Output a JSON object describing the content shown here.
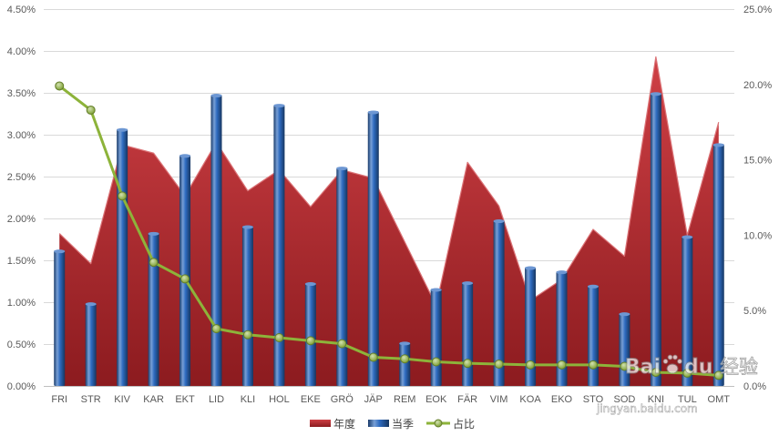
{
  "chart_data": {
    "type": "bar",
    "categories": [
      "FRI",
      "STR",
      "KIV",
      "KAR",
      "EKT",
      "LID",
      "KLI",
      "HOL",
      "EKE",
      "GRÖ",
      "JÄP",
      "REM",
      "EOK",
      "FÄR",
      "VIM",
      "KOA",
      "EKO",
      "STO",
      "SOD",
      "KNI",
      "TUL",
      "OMT"
    ],
    "series": [
      {
        "name": "年度",
        "type": "area",
        "axis": "y_left",
        "color": "#C8262C",
        "values": [
          1.82,
          1.46,
          2.88,
          2.78,
          2.27,
          2.91,
          2.33,
          2.58,
          2.14,
          2.58,
          2.48,
          1.72,
          0.96,
          2.67,
          2.15,
          1.02,
          1.27,
          1.87,
          1.55,
          3.93,
          1.8,
          3.15
        ]
      },
      {
        "name": "当季",
        "type": "bar",
        "axis": "y_left",
        "color": "#2E6BC0",
        "values": [
          1.62,
          0.99,
          3.07,
          1.83,
          2.76,
          3.48,
          1.91,
          3.36,
          1.23,
          2.61,
          3.28,
          0.52,
          1.16,
          1.24,
          1.98,
          1.42,
          1.37,
          1.2,
          0.87,
          3.5,
          1.79,
          2.89
        ]
      },
      {
        "name": "占比",
        "type": "line",
        "axis": "y_right",
        "color": "#8DB33A",
        "values": [
          19.9,
          18.3,
          12.6,
          8.2,
          7.1,
          3.8,
          3.4,
          3.2,
          3.0,
          2.8,
          1.9,
          1.8,
          1.6,
          1.5,
          1.45,
          1.4,
          1.4,
          1.4,
          1.3,
          0.9,
          0.85,
          0.7
        ]
      }
    ],
    "y_left": {
      "min": 0,
      "max": 4.5,
      "ticks": [
        "0.00%",
        "0.50%",
        "1.00%",
        "1.50%",
        "2.00%",
        "2.50%",
        "3.00%",
        "3.50%",
        "4.00%",
        "4.50%"
      ]
    },
    "y_right": {
      "min": 0,
      "max": 25,
      "ticks": [
        "0.0%",
        "5.0%",
        "10.0%",
        "15.0%",
        "20.0%",
        "25.0%"
      ]
    },
    "grid": true,
    "legend": "bottom"
  },
  "watermark": {
    "logo_left": "Bai",
    "logo_right": "du",
    "logo_cn": "经验",
    "url": "jingyan.baidu.com"
  }
}
